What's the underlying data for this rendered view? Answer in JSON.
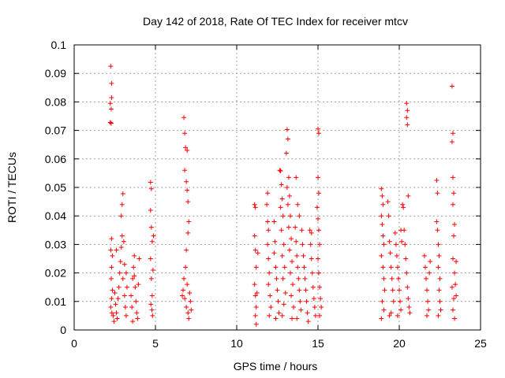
{
  "chart_data": {
    "type": "scatter",
    "title": "Day 142 of 2018, Rate Of TEC Index for receiver mtcv",
    "xlabel": "GPS time / hours",
    "ylabel": "ROTI / TECUs",
    "xlim": [
      0,
      25
    ],
    "ylim": [
      0,
      0.1
    ],
    "xticks": [
      0,
      5,
      10,
      15,
      20,
      25
    ],
    "xtick_labels": [
      "0",
      "5",
      "10",
      "15",
      "20",
      "25"
    ],
    "yticks": [
      0,
      0.01,
      0.02,
      0.03,
      0.04,
      0.05,
      0.06,
      0.07,
      0.08,
      0.09,
      0.1
    ],
    "ytick_labels": [
      "0",
      "0.01",
      "0.02",
      "0.03",
      "0.04",
      "0.05",
      "0.06",
      "0.07",
      "0.08",
      "0.09",
      "0.1"
    ],
    "grid": true,
    "marker": "+",
    "color": "#ff0000",
    "series": [
      {
        "name": "ROTI",
        "points": [
          [
            2.25,
            0.0925
          ],
          [
            2.3,
            0.0865
          ],
          [
            2.3,
            0.0815
          ],
          [
            2.22,
            0.0795
          ],
          [
            2.28,
            0.0775
          ],
          [
            2.22,
            0.0728
          ],
          [
            2.28,
            0.0725
          ],
          [
            2.3,
            0.032
          ],
          [
            2.25,
            0.028
          ],
          [
            2.35,
            0.026
          ],
          [
            2.3,
            0.022
          ],
          [
            2.28,
            0.018
          ],
          [
            2.35,
            0.014
          ],
          [
            2.3,
            0.011
          ],
          [
            2.25,
            0.008
          ],
          [
            2.32,
            0.006
          ],
          [
            2.4,
            0.005
          ],
          [
            2.5,
            0.013
          ],
          [
            2.55,
            0.009
          ],
          [
            2.6,
            0.006
          ],
          [
            2.65,
            0.004
          ],
          [
            2.7,
            0.011
          ],
          [
            2.75,
            0.015
          ],
          [
            2.8,
            0.02
          ],
          [
            2.85,
            0.024
          ],
          [
            2.9,
            0.029
          ],
          [
            2.95,
            0.033
          ],
          [
            2.9,
            0.04
          ],
          [
            2.95,
            0.044
          ],
          [
            3.0,
            0.0478
          ],
          [
            3.05,
            0.031
          ],
          [
            3.0,
            0.018
          ],
          [
            3.1,
            0.012
          ],
          [
            3.15,
            0.008
          ],
          [
            3.2,
            0.005
          ],
          [
            3.1,
            0.023
          ],
          [
            3.2,
            0.02
          ],
          [
            3.25,
            0.015
          ],
          [
            2.6,
            0.028
          ],
          [
            2.45,
            0.003
          ],
          [
            3.5,
            0.012
          ],
          [
            3.55,
            0.008
          ],
          [
            3.6,
            0.018
          ],
          [
            3.65,
            0.022
          ],
          [
            3.7,
            0.026
          ],
          [
            3.75,
            0.015
          ],
          [
            3.8,
            0.01
          ],
          [
            3.85,
            0.006
          ],
          [
            3.9,
            0.004
          ],
          [
            3.95,
            0.016
          ],
          [
            4.0,
            0.025
          ],
          [
            3.6,
            0.003
          ],
          [
            3.7,
            0.019
          ],
          [
            4.7,
            0.0518
          ],
          [
            4.75,
            0.0495
          ],
          [
            4.7,
            0.042
          ],
          [
            4.75,
            0.036
          ],
          [
            4.8,
            0.031
          ],
          [
            4.7,
            0.025
          ],
          [
            4.75,
            0.018
          ],
          [
            4.8,
            0.012
          ],
          [
            4.72,
            0.009
          ],
          [
            4.78,
            0.007
          ],
          [
            4.82,
            0.005
          ],
          [
            4.85,
            0.021
          ],
          [
            4.88,
            0.033
          ],
          [
            6.75,
            0.0745
          ],
          [
            6.8,
            0.069
          ],
          [
            6.85,
            0.064
          ],
          [
            6.95,
            0.063
          ],
          [
            6.8,
            0.056
          ],
          [
            6.9,
            0.052
          ],
          [
            6.95,
            0.049
          ],
          [
            7.0,
            0.045
          ],
          [
            7.05,
            0.038
          ],
          [
            7.0,
            0.034
          ],
          [
            6.9,
            0.028
          ],
          [
            6.85,
            0.022
          ],
          [
            6.75,
            0.018
          ],
          [
            6.7,
            0.014
          ],
          [
            6.8,
            0.011
          ],
          [
            6.9,
            0.008
          ],
          [
            7.0,
            0.006
          ],
          [
            7.05,
            0.004
          ],
          [
            6.95,
            0.016
          ],
          [
            7.1,
            0.013
          ],
          [
            7.15,
            0.01
          ],
          [
            7.2,
            0.007
          ],
          [
            6.65,
            0.012
          ],
          [
            11.1,
            0.044
          ],
          [
            11.15,
            0.043
          ],
          [
            11.1,
            0.033
          ],
          [
            11.15,
            0.028
          ],
          [
            11.2,
            0.022
          ],
          [
            11.1,
            0.016
          ],
          [
            11.15,
            0.012
          ],
          [
            11.2,
            0.008
          ],
          [
            11.15,
            0.005
          ],
          [
            11.2,
            0.002
          ],
          [
            11.3,
            0.027
          ],
          [
            11.25,
            0.013
          ],
          [
            11.9,
            0.048
          ],
          [
            11.85,
            0.044
          ],
          [
            11.9,
            0.038
          ],
          [
            11.95,
            0.035
          ],
          [
            11.9,
            0.03
          ],
          [
            11.95,
            0.025
          ],
          [
            12.0,
            0.02
          ],
          [
            11.95,
            0.016
          ],
          [
            12.05,
            0.012
          ],
          [
            12.1,
            0.008
          ],
          [
            12.0,
            0.005
          ],
          [
            12.3,
            0.038
          ],
          [
            12.35,
            0.031
          ],
          [
            12.3,
            0.027
          ],
          [
            12.4,
            0.022
          ],
          [
            12.45,
            0.018
          ],
          [
            12.5,
            0.014
          ],
          [
            12.55,
            0.01
          ],
          [
            12.6,
            0.006
          ],
          [
            12.4,
            0.004
          ],
          [
            12.65,
            0.056
          ],
          [
            12.7,
            0.0558
          ],
          [
            12.75,
            0.051
          ],
          [
            12.8,
            0.046
          ],
          [
            12.7,
            0.043
          ],
          [
            12.85,
            0.04
          ],
          [
            12.75,
            0.035
          ],
          [
            12.9,
            0.03
          ],
          [
            12.8,
            0.026
          ],
          [
            12.95,
            0.022
          ],
          [
            12.85,
            0.018
          ],
          [
            13.0,
            0.013
          ],
          [
            12.9,
            0.009
          ],
          [
            12.8,
            0.005
          ],
          [
            13.1,
            0.0703
          ],
          [
            13.15,
            0.067
          ],
          [
            13.05,
            0.062
          ],
          [
            13.2,
            0.0535
          ],
          [
            13.1,
            0.05
          ],
          [
            13.25,
            0.047
          ],
          [
            13.15,
            0.044
          ],
          [
            13.3,
            0.04
          ],
          [
            13.2,
            0.036
          ],
          [
            13.35,
            0.032
          ],
          [
            13.25,
            0.028
          ],
          [
            13.4,
            0.024
          ],
          [
            13.3,
            0.02
          ],
          [
            13.45,
            0.016
          ],
          [
            13.35,
            0.012
          ],
          [
            13.5,
            0.008
          ],
          [
            13.4,
            0.004
          ],
          [
            13.6,
            0.036
          ],
          [
            13.65,
            0.031
          ],
          [
            13.7,
            0.026
          ],
          [
            13.75,
            0.022
          ],
          [
            13.8,
            0.018
          ],
          [
            13.85,
            0.014
          ],
          [
            13.9,
            0.01
          ],
          [
            13.95,
            0.007
          ],
          [
            13.7,
            0.004
          ],
          [
            13.65,
            0.0535
          ],
          [
            13.75,
            0.044
          ],
          [
            13.85,
            0.04
          ],
          [
            14.0,
            0.035
          ],
          [
            14.05,
            0.03
          ],
          [
            14.1,
            0.026
          ],
          [
            14.15,
            0.022
          ],
          [
            14.2,
            0.018
          ],
          [
            14.25,
            0.014
          ],
          [
            14.3,
            0.01
          ],
          [
            14.35,
            0.006
          ],
          [
            14.4,
            0.003
          ],
          [
            14.5,
            0.035
          ],
          [
            14.55,
            0.03
          ],
          [
            14.6,
            0.025
          ],
          [
            14.65,
            0.02
          ],
          [
            14.7,
            0.015
          ],
          [
            14.75,
            0.011
          ],
          [
            14.8,
            0.008
          ],
          [
            14.85,
            0.005
          ],
          [
            14.6,
            0.034
          ],
          [
            15.0,
            0.0705
          ],
          [
            15.05,
            0.069
          ],
          [
            15.0,
            0.0535
          ],
          [
            15.05,
            0.048
          ],
          [
            14.95,
            0.043
          ],
          [
            15.0,
            0.039
          ],
          [
            15.05,
            0.035
          ],
          [
            15.1,
            0.03
          ],
          [
            15.0,
            0.025
          ],
          [
            15.05,
            0.02
          ],
          [
            15.1,
            0.015
          ],
          [
            15.15,
            0.011
          ],
          [
            15.2,
            0.008
          ],
          [
            15.1,
            0.005
          ],
          [
            18.9,
            0.0495
          ],
          [
            18.95,
            0.047
          ],
          [
            19.0,
            0.044
          ],
          [
            18.9,
            0.04
          ],
          [
            18.95,
            0.037
          ],
          [
            19.0,
            0.033
          ],
          [
            19.05,
            0.03
          ],
          [
            18.9,
            0.026
          ],
          [
            19.0,
            0.022
          ],
          [
            19.05,
            0.018
          ],
          [
            19.1,
            0.014
          ],
          [
            18.95,
            0.01
          ],
          [
            19.05,
            0.007
          ],
          [
            18.9,
            0.004
          ],
          [
            19.3,
            0.045
          ],
          [
            19.35,
            0.04
          ],
          [
            19.4,
            0.031
          ],
          [
            19.45,
            0.027
          ],
          [
            19.5,
            0.022
          ],
          [
            19.55,
            0.018
          ],
          [
            19.6,
            0.014
          ],
          [
            19.65,
            0.01
          ],
          [
            19.5,
            0.006
          ],
          [
            19.4,
            0.005
          ],
          [
            19.75,
            0.034
          ],
          [
            19.8,
            0.03
          ],
          [
            19.85,
            0.026
          ],
          [
            19.9,
            0.022
          ],
          [
            19.95,
            0.018
          ],
          [
            20.0,
            0.014
          ],
          [
            20.05,
            0.01
          ],
          [
            20.1,
            0.007
          ],
          [
            19.9,
            0.005
          ],
          [
            20.1,
            0.035
          ],
          [
            20.15,
            0.031
          ],
          [
            20.2,
            0.044
          ],
          [
            20.25,
            0.043
          ],
          [
            20.3,
            0.035
          ],
          [
            20.35,
            0.03
          ],
          [
            20.4,
            0.025
          ],
          [
            20.45,
            0.02
          ],
          [
            20.5,
            0.015
          ],
          [
            20.55,
            0.011
          ],
          [
            20.6,
            0.008
          ],
          [
            20.65,
            0.006
          ],
          [
            20.45,
            0.0795
          ],
          [
            20.5,
            0.077
          ],
          [
            20.45,
            0.0745
          ],
          [
            20.5,
            0.072
          ],
          [
            20.55,
            0.047
          ],
          [
            21.55,
            0.026
          ],
          [
            21.6,
            0.022
          ],
          [
            21.65,
            0.018
          ],
          [
            21.7,
            0.014
          ],
          [
            21.75,
            0.01
          ],
          [
            21.8,
            0.007
          ],
          [
            21.7,
            0.005
          ],
          [
            21.85,
            0.02
          ],
          [
            21.9,
            0.024
          ],
          [
            22.3,
            0.0525
          ],
          [
            22.35,
            0.048
          ],
          [
            22.3,
            0.038
          ],
          [
            22.35,
            0.035
          ],
          [
            22.4,
            0.03
          ],
          [
            22.45,
            0.026
          ],
          [
            22.4,
            0.022
          ],
          [
            22.5,
            0.018
          ],
          [
            22.45,
            0.014
          ],
          [
            22.5,
            0.01
          ],
          [
            22.55,
            0.007
          ],
          [
            22.4,
            0.005
          ],
          [
            23.25,
            0.0855
          ],
          [
            23.3,
            0.069
          ],
          [
            23.25,
            0.066
          ],
          [
            23.3,
            0.0535
          ],
          [
            23.35,
            0.048
          ],
          [
            23.3,
            0.044
          ],
          [
            23.4,
            0.037
          ],
          [
            23.35,
            0.033
          ],
          [
            23.3,
            0.025
          ],
          [
            23.4,
            0.02
          ],
          [
            23.25,
            0.015
          ],
          [
            23.35,
            0.011
          ],
          [
            23.3,
            0.007
          ],
          [
            23.4,
            0.004
          ],
          [
            23.45,
            0.016
          ],
          [
            23.5,
            0.012
          ],
          [
            23.5,
            0.024
          ]
        ]
      }
    ]
  }
}
